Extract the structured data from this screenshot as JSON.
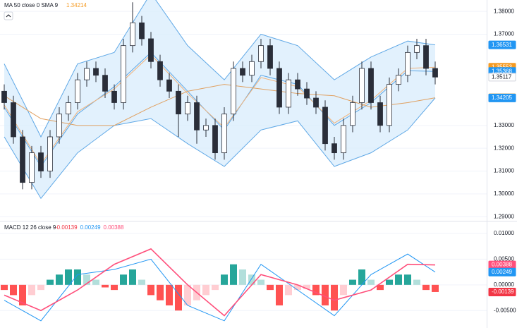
{
  "chart_data": [
    {
      "type": "candlestick",
      "legend_label": "MA 50 close 0 SMA 9",
      "legend_value": 1.34214,
      "open": [
        1.345,
        1.34,
        1.325,
        1.305,
        1.318,
        1.31,
        1.325,
        1.335,
        1.34,
        1.35,
        1.355,
        1.352,
        1.345,
        1.34,
        1.365,
        1.375,
        1.368,
        1.358,
        1.35,
        1.345,
        1.335,
        1.34,
        1.328,
        1.33,
        1.318,
        1.335,
        1.355,
        1.352,
        1.358,
        1.365,
        1.355,
        1.338,
        1.35,
        1.346,
        1.342,
        1.338,
        1.322,
        1.318,
        1.33,
        1.34,
        1.355,
        1.34,
        1.33,
        1.348,
        1.352,
        1.362,
        1.365,
        1.355
      ],
      "high": [
        1.348,
        1.343,
        1.328,
        1.321,
        1.321,
        1.328,
        1.338,
        1.343,
        1.353,
        1.358,
        1.358,
        1.355,
        1.348,
        1.368,
        1.384,
        1.378,
        1.371,
        1.361,
        1.353,
        1.348,
        1.343,
        1.343,
        1.333,
        1.333,
        1.338,
        1.358,
        1.358,
        1.361,
        1.368,
        1.368,
        1.358,
        1.353,
        1.353,
        1.349,
        1.345,
        1.341,
        1.325,
        1.333,
        1.343,
        1.358,
        1.358,
        1.343,
        1.351,
        1.355,
        1.365,
        1.368,
        1.368,
        1.358
      ],
      "low": [
        1.337,
        1.322,
        1.302,
        1.302,
        1.307,
        1.307,
        1.322,
        1.332,
        1.337,
        1.347,
        1.349,
        1.342,
        1.337,
        1.337,
        1.362,
        1.365,
        1.355,
        1.347,
        1.342,
        1.325,
        1.332,
        1.322,
        1.325,
        1.315,
        1.315,
        1.332,
        1.349,
        1.349,
        1.355,
        1.352,
        1.335,
        1.335,
        1.343,
        1.339,
        1.335,
        1.319,
        1.315,
        1.315,
        1.327,
        1.337,
        1.337,
        1.327,
        1.327,
        1.345,
        1.349,
        1.359,
        1.352,
        1.348
      ],
      "close": [
        1.34,
        1.325,
        1.305,
        1.318,
        1.31,
        1.325,
        1.335,
        1.34,
        1.35,
        1.355,
        1.352,
        1.345,
        1.34,
        1.365,
        1.375,
        1.368,
        1.358,
        1.35,
        1.345,
        1.335,
        1.34,
        1.328,
        1.33,
        1.318,
        1.335,
        1.355,
        1.352,
        1.358,
        1.365,
        1.355,
        1.338,
        1.35,
        1.346,
        1.342,
        1.338,
        1.322,
        1.318,
        1.33,
        1.34,
        1.355,
        1.34,
        1.33,
        1.348,
        1.352,
        1.362,
        1.365,
        1.355,
        1.3512
      ],
      "up_color": "#ffffff",
      "down_color": "#2a2e39",
      "line_x": [
        0,
        4,
        8,
        12,
        16,
        20,
        24,
        28,
        32,
        36,
        40,
        44,
        47
      ],
      "series": [
        {
          "name": "Upper",
          "color": "#5fa8e6",
          "values": [
            1.357,
            1.325,
            1.357,
            1.362,
            1.388,
            1.365,
            1.35,
            1.37,
            1.365,
            1.35,
            1.36,
            1.367,
            1.36531
          ]
        },
        {
          "name": "Lower",
          "color": "#5fa8e6",
          "values": [
            1.325,
            1.298,
            1.318,
            1.33,
            1.333,
            1.322,
            1.312,
            1.328,
            1.332,
            1.312,
            1.318,
            1.328,
            1.34205
          ]
        },
        {
          "name": "Basis",
          "color": "#5fa8e6",
          "values": [
            1.338,
            1.312,
            1.335,
            1.347,
            1.362,
            1.345,
            1.328,
            1.352,
            1.348,
            1.33,
            1.34,
            1.354,
            1.35368
          ]
        },
        {
          "name": "SMA 9",
          "color": "#f0b27a",
          "values": [
            1.339,
            1.313,
            1.336,
            1.346,
            1.361,
            1.344,
            1.329,
            1.351,
            1.347,
            1.331,
            1.341,
            1.355,
            1.35553
          ]
        },
        {
          "name": "MA 50",
          "color": "#e0a060",
          "values": [
            1.343,
            1.333,
            1.33,
            1.33,
            1.338,
            1.345,
            1.348,
            1.346,
            1.344,
            1.343,
            1.338,
            1.34,
            1.34214
          ]
        }
      ],
      "band_fill": "#dbeefc",
      "price_tags": [
        {
          "value": 1.36531,
          "color": "#2196f3"
        },
        {
          "value": 1.35553,
          "color": "#f59b23"
        },
        {
          "value": 1.35368,
          "color": "#2196f3"
        },
        {
          "value": 1.35117,
          "color": "#ffffff"
        },
        {
          "value": 1.34214,
          "color": "#f59b23"
        },
        {
          "value": 1.34205,
          "color": "#2196f3"
        }
      ],
      "ylim": [
        1.2885,
        1.385
      ],
      "yticks": [
        {
          "value": 1.29,
          "label": "1.29000"
        },
        {
          "value": 1.3,
          "label": "1.30000"
        },
        {
          "value": 1.31,
          "label": "1.31000"
        },
        {
          "value": 1.32,
          "label": "1.32000"
        },
        {
          "value": 1.33,
          "label": "1.33000"
        },
        {
          "value": 1.37,
          "label": "1.37000"
        },
        {
          "value": 1.38,
          "label": "1.38000"
        }
      ],
      "grid": true
    },
    {
      "type": "macd",
      "legend_label": "MACD 12 26 close 9",
      "legend_values": [
        -0.00139,
        0.00249,
        0.00388
      ],
      "histogram": [
        -0.001,
        -0.002,
        -0.004,
        -0.002,
        -0.001,
        0.001,
        0.002,
        0.003,
        0.003,
        0.002,
        0.001,
        -0.0005,
        -0.001,
        0.002,
        0.003,
        0.001,
        -0.002,
        -0.003,
        -0.004,
        -0.005,
        -0.004,
        -0.003,
        -0.002,
        -0.001,
        0.002,
        0.004,
        0.003,
        0.002,
        0.001,
        -0.001,
        -0.004,
        -0.002,
        -0.001,
        -0.0008,
        -0.002,
        -0.004,
        -0.005,
        -0.002,
        0.001,
        0.003,
        0.001,
        -0.001,
        0.001,
        0.002,
        0.002,
        0.001,
        -0.001,
        -0.00139
      ],
      "line_x": [
        0,
        4,
        8,
        12,
        16,
        20,
        24,
        28,
        32,
        36,
        40,
        44,
        47
      ],
      "series": [
        {
          "name": "MACD",
          "color": "#2196f3",
          "values": [
            -0.003,
            -0.007,
            0.002,
            0.003,
            0.005,
            -0.004,
            -0.007,
            0.004,
            -0.001,
            -0.006,
            0.002,
            0.006,
            0.00249
          ]
        },
        {
          "name": "Signal",
          "color": "#ff4f7b",
          "values": [
            -0.002,
            -0.005,
            -0.001,
            0.004,
            0.007,
            0.0,
            -0.006,
            0.002,
            0.0,
            -0.003,
            -0.001,
            0.004,
            0.00388
          ]
        }
      ],
      "price_tags": [
        {
          "value": 0.00388,
          "color": "#ff4f7b"
        },
        {
          "value": 0.00249,
          "color": "#2196f3"
        },
        {
          "value": -0.00139,
          "color": "#f23645"
        }
      ],
      "ylim": [
        -0.0084,
        0.0122
      ],
      "yticks": [
        {
          "value": 0.01,
          "label": "0.01000"
        },
        {
          "value": 0.005,
          "label": "0.00500"
        },
        {
          "value": 0,
          "label": "0.00000"
        },
        {
          "value": -0.005,
          "label": "-0.00500"
        }
      ],
      "grid": true
    }
  ]
}
